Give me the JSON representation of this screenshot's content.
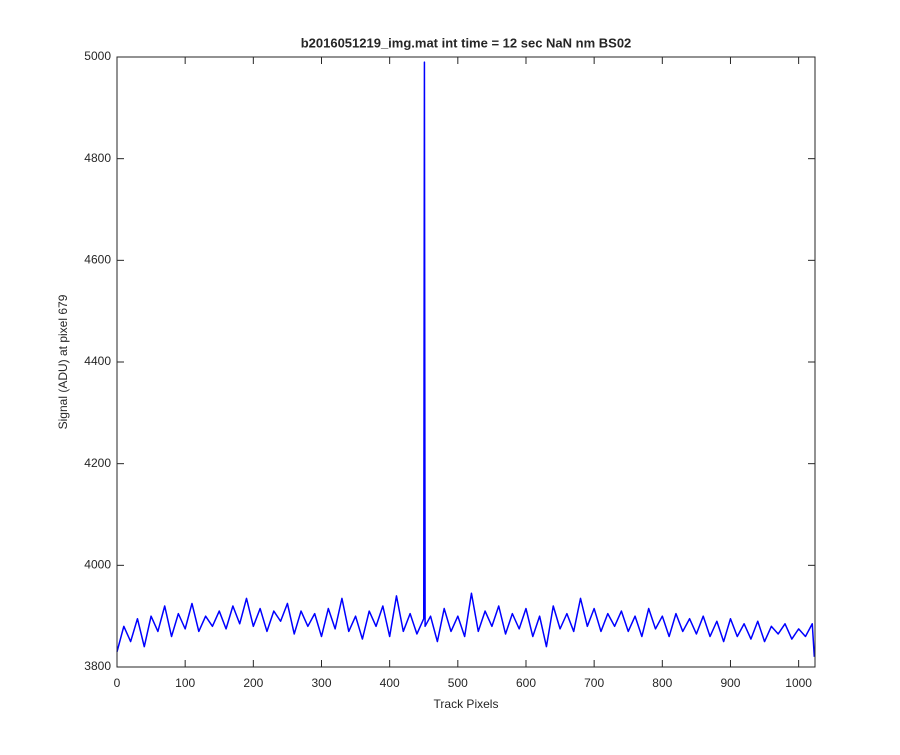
{
  "chart_data": {
    "type": "line",
    "title": "b2016051219_img.mat int time = 12 sec  NaN nm BS02",
    "xlabel": "Track Pixels",
    "ylabel": "Signal (ADU) at pixel 679",
    "color": "#0000ff",
    "grid": false,
    "xlim": [
      0,
      1024
    ],
    "ylim": [
      3800,
      5000
    ],
    "xticks": [
      0,
      100,
      200,
      300,
      400,
      500,
      600,
      700,
      800,
      900,
      1000
    ],
    "yticks": [
      3800,
      4000,
      4200,
      4400,
      4600,
      4800,
      5000
    ],
    "x": [
      0,
      10,
      20,
      30,
      40,
      50,
      60,
      70,
      80,
      90,
      100,
      110,
      120,
      130,
      140,
      150,
      160,
      170,
      180,
      190,
      200,
      210,
      220,
      230,
      240,
      250,
      260,
      270,
      280,
      290,
      300,
      310,
      320,
      330,
      340,
      350,
      360,
      370,
      380,
      390,
      400,
      410,
      420,
      430,
      440,
      450,
      451,
      452,
      460,
      470,
      480,
      490,
      500,
      510,
      520,
      530,
      540,
      550,
      560,
      570,
      580,
      590,
      600,
      610,
      620,
      630,
      640,
      650,
      660,
      670,
      680,
      690,
      700,
      710,
      720,
      730,
      740,
      750,
      760,
      770,
      780,
      790,
      800,
      810,
      820,
      830,
      840,
      850,
      860,
      870,
      880,
      890,
      900,
      910,
      920,
      930,
      940,
      950,
      960,
      970,
      980,
      990,
      1000,
      1010,
      1020,
      1023
    ],
    "values": [
      3830,
      3880,
      3850,
      3895,
      3840,
      3900,
      3870,
      3920,
      3860,
      3905,
      3875,
      3925,
      3870,
      3900,
      3880,
      3910,
      3875,
      3920,
      3885,
      3935,
      3880,
      3915,
      3870,
      3910,
      3890,
      3925,
      3865,
      3910,
      3880,
      3905,
      3860,
      3915,
      3875,
      3935,
      3870,
      3900,
      3855,
      3910,
      3880,
      3920,
      3860,
      3940,
      3870,
      3905,
      3865,
      3895,
      4990,
      3880,
      3900,
      3850,
      3915,
      3870,
      3900,
      3860,
      3945,
      3870,
      3910,
      3880,
      3920,
      3865,
      3905,
      3875,
      3915,
      3860,
      3900,
      3840,
      3920,
      3875,
      3905,
      3870,
      3935,
      3880,
      3915,
      3870,
      3905,
      3880,
      3910,
      3870,
      3900,
      3860,
      3915,
      3875,
      3900,
      3860,
      3905,
      3870,
      3895,
      3865,
      3900,
      3860,
      3890,
      3850,
      3895,
      3860,
      3885,
      3855,
      3890,
      3850,
      3880,
      3865,
      3885,
      3855,
      3875,
      3860,
      3885,
      3820
    ]
  }
}
